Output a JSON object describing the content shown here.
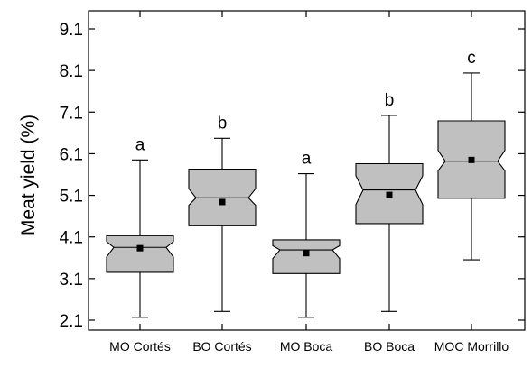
{
  "chart_data": {
    "type": "boxplot",
    "notched": true,
    "ylabel": "Meat yield (%)",
    "xlabel": "",
    "ylim": [
      2.1,
      9.1
    ],
    "y_ticks": [
      2.1,
      3.1,
      4.1,
      5.1,
      6.1,
      7.1,
      8.1,
      9.1
    ],
    "y_tick_labels": [
      "2.1",
      "3.1",
      "4.1",
      "5.1",
      "6.1",
      "7.1",
      "8.1",
      "9.1"
    ],
    "categories": [
      "MO Cortés",
      "BO Cortés",
      "MO Boca",
      "BO Boca",
      "MOC Morrillo"
    ],
    "boxes": [
      {
        "category": "MO Cortés",
        "whisker_low": 2.17,
        "q1": 3.25,
        "notch_low": 3.62,
        "median": 3.85,
        "notch_high": 3.99,
        "q3": 4.13,
        "whisker_high": 5.95,
        "mean": 3.83,
        "group_label": "a"
      },
      {
        "category": "BO Cortés",
        "whisker_low": 2.31,
        "q1": 4.37,
        "notch_low": 4.86,
        "median": 5.04,
        "notch_high": 5.26,
        "q3": 5.73,
        "whisker_high": 6.47,
        "mean": 4.94,
        "group_label": "b"
      },
      {
        "category": "MO Boca",
        "whisker_low": 2.17,
        "q1": 3.22,
        "notch_low": 3.58,
        "median": 3.79,
        "notch_high": 3.89,
        "q3": 4.03,
        "whisker_high": 5.62,
        "mean": 3.71,
        "group_label": "a"
      },
      {
        "category": "BO Boca",
        "whisker_low": 2.31,
        "q1": 4.42,
        "notch_low": 4.88,
        "median": 5.23,
        "notch_high": 5.57,
        "q3": 5.86,
        "whisker_high": 7.02,
        "mean": 5.11,
        "group_label": "b"
      },
      {
        "category": "MOC Morrillo",
        "whisker_low": 3.55,
        "q1": 5.03,
        "notch_low": 5.69,
        "median": 5.92,
        "notch_high": 6.18,
        "q3": 6.89,
        "whisker_high": 8.04,
        "mean": 5.95,
        "group_label": "c"
      }
    ],
    "grid": false,
    "legend": "none",
    "colors": {
      "box_fill": "#c0c0c0",
      "stroke": "#000000",
      "mean_marker": "#000000",
      "background": "#ffffff"
    }
  }
}
